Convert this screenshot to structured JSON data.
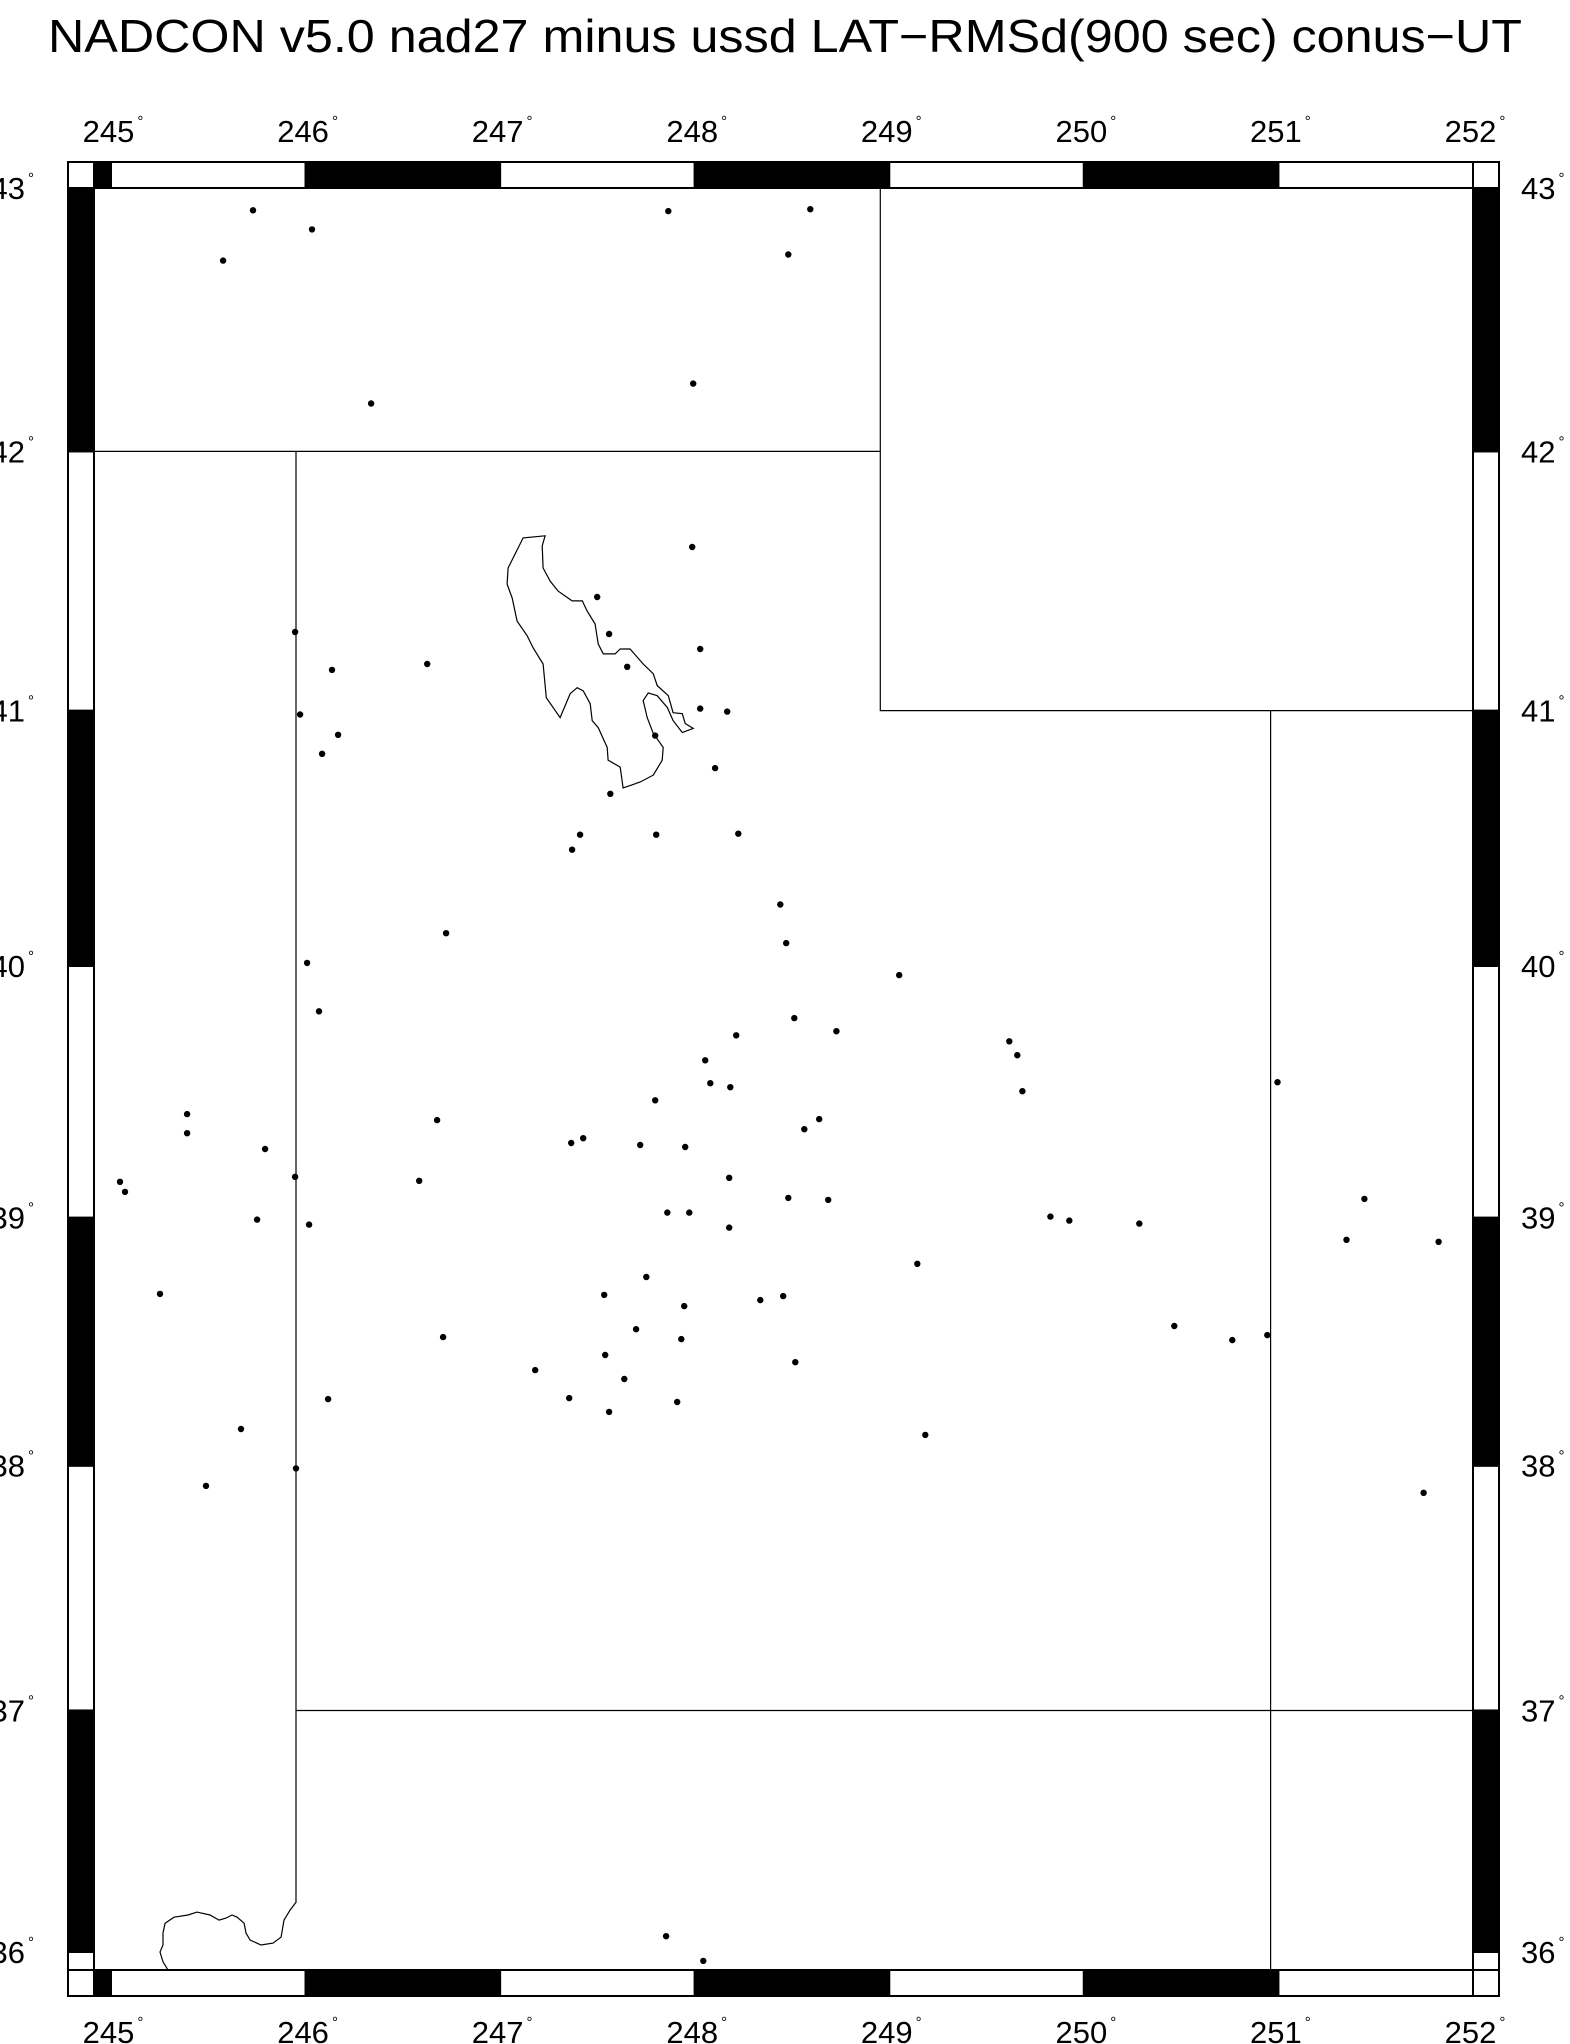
{
  "title": "NADCON v5.0 nad27 minus ussd LAT−RMSd(900 sec) conus−UT",
  "map": {
    "projection": "Mercator",
    "lon_range": [
      244.913,
      252.0
    ],
    "lat_range": [
      35.925,
      43.0
    ],
    "degree_symbol": "°",
    "frame_style": "alternating black/white degree bars",
    "colors": {
      "ink": "#000000",
      "background": "#ffffff"
    },
    "lon_ticks": [
      {
        "value": 245,
        "label": "245"
      },
      {
        "value": 246,
        "label": "246"
      },
      {
        "value": 247,
        "label": "247"
      },
      {
        "value": 248,
        "label": "248"
      },
      {
        "value": 249,
        "label": "249"
      },
      {
        "value": 250,
        "label": "250"
      },
      {
        "value": 251,
        "label": "251"
      },
      {
        "value": 252,
        "label": "252"
      }
    ],
    "lat_ticks": [
      {
        "value": 43,
        "label": "43"
      },
      {
        "value": 42,
        "label": "42"
      },
      {
        "value": 41,
        "label": "41"
      },
      {
        "value": 40,
        "label": "40"
      },
      {
        "value": 39,
        "label": "39"
      },
      {
        "value": 38,
        "label": "38"
      },
      {
        "value": 37,
        "label": "37"
      },
      {
        "value": 36,
        "label": "36"
      }
    ],
    "boundaries": [
      {
        "name": "nevada-utah-arizona-border",
        "points": [
          [
            245.951,
            42.0
          ],
          [
            245.951,
            36.207
          ],
          [
            245.92,
            36.174
          ],
          [
            245.889,
            36.133
          ],
          [
            245.874,
            36.062
          ],
          [
            245.833,
            36.037
          ],
          [
            245.771,
            36.029
          ],
          [
            245.715,
            36.05
          ],
          [
            245.694,
            36.079
          ],
          [
            245.684,
            36.12
          ],
          [
            245.648,
            36.145
          ],
          [
            245.622,
            36.154
          ],
          [
            245.591,
            36.141
          ],
          [
            245.555,
            36.133
          ],
          [
            245.509,
            36.154
          ],
          [
            245.442,
            36.166
          ],
          [
            245.396,
            36.154
          ],
          [
            245.324,
            36.145
          ],
          [
            245.278,
            36.12
          ],
          [
            245.267,
            36.079
          ],
          [
            245.267,
            36.029
          ],
          [
            245.252,
            36.0
          ],
          [
            245.267,
            35.959
          ],
          [
            245.293,
            35.925
          ]
        ]
      },
      {
        "name": "utah-north-border",
        "points": [
          [
            244.913,
            42.0
          ],
          [
            248.954,
            42.0
          ]
        ]
      },
      {
        "name": "wyoming-border",
        "points": [
          [
            248.954,
            43.0
          ],
          [
            248.954,
            41.0
          ],
          [
            252.0,
            41.0
          ]
        ]
      },
      {
        "name": "colorado-utah-border",
        "points": [
          [
            250.96,
            41.0
          ],
          [
            250.96,
            35.925
          ]
        ]
      },
      {
        "name": "arizona-utah-border",
        "points": [
          [
            245.951,
            37.0
          ],
          [
            252.0,
            37.0
          ]
        ]
      }
    ],
    "lakes": [
      {
        "name": "great-salt-lake",
        "points": [
          [
            247.231,
            41.676
          ],
          [
            247.118,
            41.668
          ],
          [
            247.077,
            41.606
          ],
          [
            247.041,
            41.552
          ],
          [
            247.036,
            41.49
          ],
          [
            247.062,
            41.436
          ],
          [
            247.087,
            41.347
          ],
          [
            247.139,
            41.29
          ],
          [
            247.17,
            41.243
          ],
          [
            247.221,
            41.181
          ],
          [
            247.237,
            41.05
          ],
          [
            247.308,
            40.973
          ],
          [
            247.36,
            41.066
          ],
          [
            247.396,
            41.089
          ],
          [
            247.427,
            41.077
          ],
          [
            247.463,
            41.027
          ],
          [
            247.473,
            40.961
          ],
          [
            247.504,
            40.934
          ],
          [
            247.55,
            40.857
          ],
          [
            247.555,
            40.807
          ],
          [
            247.617,
            40.78
          ],
          [
            247.632,
            40.699
          ],
          [
            247.72,
            40.722
          ],
          [
            247.787,
            40.749
          ],
          [
            247.833,
            40.807
          ],
          [
            247.838,
            40.857
          ],
          [
            247.787,
            40.911
          ],
          [
            247.756,
            40.973
          ],
          [
            247.735,
            41.039
          ],
          [
            247.761,
            41.069
          ],
          [
            247.807,
            41.058
          ],
          [
            247.859,
            41.012
          ],
          [
            247.889,
            40.961
          ],
          [
            247.936,
            40.915
          ],
          [
            247.992,
            40.931
          ],
          [
            247.951,
            40.95
          ],
          [
            247.936,
            40.988
          ],
          [
            247.889,
            40.992
          ],
          [
            247.864,
            41.058
          ],
          [
            247.807,
            41.097
          ],
          [
            247.787,
            41.143
          ],
          [
            247.735,
            41.181
          ],
          [
            247.668,
            41.239
          ],
          [
            247.617,
            41.239
          ],
          [
            247.591,
            41.22
          ],
          [
            247.53,
            41.22
          ],
          [
            247.504,
            41.259
          ],
          [
            247.488,
            41.336
          ],
          [
            247.447,
            41.386
          ],
          [
            247.422,
            41.425
          ],
          [
            247.37,
            41.425
          ],
          [
            247.298,
            41.463
          ],
          [
            247.257,
            41.502
          ],
          [
            247.221,
            41.552
          ],
          [
            247.216,
            41.637
          ],
          [
            247.231,
            41.676
          ]
        ]
      }
    ],
    "stations": [
      [
        245.73,
        42.916
      ],
      [
        246.033,
        42.844
      ],
      [
        245.576,
        42.726
      ],
      [
        247.864,
        42.913
      ],
      [
        248.594,
        42.92
      ],
      [
        248.481,
        42.749
      ],
      [
        246.337,
        42.183
      ],
      [
        247.992,
        42.259
      ],
      [
        247.987,
        41.633
      ],
      [
        247.499,
        41.44
      ],
      [
        247.56,
        41.297
      ],
      [
        248.028,
        41.239
      ],
      [
        247.653,
        41.17
      ],
      [
        248.028,
        41.008
      ],
      [
        248.167,
        40.996
      ],
      [
        247.797,
        40.903
      ],
      [
        248.105,
        40.776
      ],
      [
        247.566,
        40.676
      ],
      [
        245.946,
        41.305
      ],
      [
        246.136,
        41.158
      ],
      [
        246.625,
        41.181
      ],
      [
        245.972,
        40.985
      ],
      [
        246.167,
        40.906
      ],
      [
        246.085,
        40.832
      ],
      [
        246.722,
        40.129
      ],
      [
        246.008,
        40.012
      ],
      [
        246.069,
        39.821
      ],
      [
        247.411,
        40.516
      ],
      [
        247.802,
        40.516
      ],
      [
        248.224,
        40.52
      ],
      [
        247.37,
        40.457
      ],
      [
        248.44,
        40.242
      ],
      [
        248.47,
        40.09
      ],
      [
        249.051,
        39.964
      ],
      [
        248.512,
        39.794
      ],
      [
        248.728,
        39.742
      ],
      [
        248.213,
        39.726
      ],
      [
        248.054,
        39.627
      ],
      [
        248.08,
        39.536
      ],
      [
        248.183,
        39.52
      ],
      [
        247.797,
        39.468
      ],
      [
        248.64,
        39.393
      ],
      [
        248.563,
        39.353
      ],
      [
        247.365,
        39.298
      ],
      [
        247.427,
        39.317
      ],
      [
        247.72,
        39.29
      ],
      [
        247.951,
        39.282
      ],
      [
        248.177,
        39.159
      ],
      [
        248.481,
        39.079
      ],
      [
        248.686,
        39.071
      ],
      [
        247.859,
        39.02
      ],
      [
        247.972,
        39.02
      ],
      [
        248.177,
        38.96
      ],
      [
        247.751,
        38.762
      ],
      [
        247.535,
        38.69
      ],
      [
        247.946,
        38.645
      ],
      [
        248.337,
        38.669
      ],
      [
        248.455,
        38.685
      ],
      [
        247.699,
        38.552
      ],
      [
        247.931,
        38.512
      ],
      [
        247.54,
        38.448
      ],
      [
        248.517,
        38.419
      ],
      [
        247.18,
        38.387
      ],
      [
        247.638,
        38.351
      ],
      [
        247.355,
        38.274
      ],
      [
        247.91,
        38.258
      ],
      [
        247.56,
        38.218
      ],
      [
        245.391,
        39.413
      ],
      [
        245.391,
        39.337
      ],
      [
        245.792,
        39.274
      ],
      [
        245.946,
        39.163
      ],
      [
        245.046,
        39.143
      ],
      [
        245.072,
        39.103
      ],
      [
        245.751,
        38.992
      ],
      [
        246.018,
        38.972
      ],
      [
        245.252,
        38.694
      ],
      [
        246.676,
        39.389
      ],
      [
        246.584,
        39.147
      ],
      [
        246.707,
        38.52
      ],
      [
        246.116,
        38.27
      ],
      [
        245.668,
        38.149
      ],
      [
        245.951,
        37.989
      ],
      [
        245.488,
        37.918
      ],
      [
        249.617,
        39.702
      ],
      [
        249.658,
        39.647
      ],
      [
        249.684,
        39.504
      ],
      [
        250.995,
        39.54
      ],
      [
        249.828,
        39.004
      ],
      [
        249.925,
        38.988
      ],
      [
        250.285,
        38.976
      ],
      [
        249.144,
        38.815
      ],
      [
        250.465,
        38.565
      ],
      [
        250.763,
        38.508
      ],
      [
        250.943,
        38.528
      ],
      [
        251.442,
        39.075
      ],
      [
        251.35,
        38.911
      ],
      [
        251.823,
        38.903
      ],
      [
        249.185,
        38.125
      ],
      [
        251.746,
        37.89
      ],
      [
        247.853,
        36.066
      ],
      [
        248.044,
        35.963
      ]
    ]
  }
}
